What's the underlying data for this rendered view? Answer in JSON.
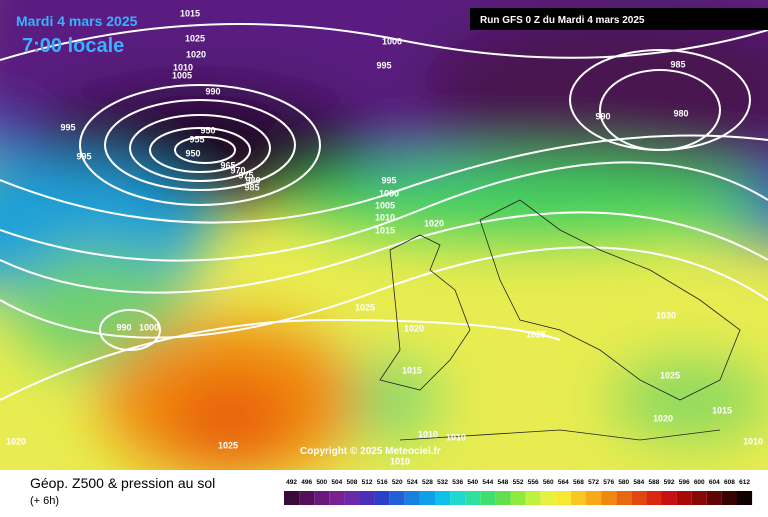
{
  "header": {
    "date": "Mardi 4 mars 2025",
    "time": "7:00 locale",
    "run": "Run GFS 0 Z du Mardi 4 mars 2025"
  },
  "copyright": "Copyright © 2025 Meteociel.fr",
  "footer": {
    "title": "Géop. Z500 & pression au sol",
    "step": "(+ 6h)"
  },
  "isobar_labels": [
    1015,
    1025,
    1020,
    1010,
    1005,
    1000,
    995,
    990,
    995,
    995,
    950,
    955,
    950,
    965,
    970,
    975,
    980,
    985,
    985,
    990,
    980,
    995,
    1000,
    1005,
    1010,
    1015,
    1020,
    1025,
    1020,
    990,
    1000,
    1015,
    1025,
    1030,
    1025,
    1020,
    1015,
    1010,
    1010,
    1010,
    1025,
    1020,
    1010
  ],
  "color_scale": [
    492,
    496,
    500,
    504,
    508,
    512,
    516,
    520,
    524,
    528,
    532,
    536,
    540,
    544,
    548,
    552,
    556,
    560,
    564,
    568,
    572,
    576,
    580,
    584,
    588,
    592,
    596,
    600,
    604,
    608,
    612
  ]
}
